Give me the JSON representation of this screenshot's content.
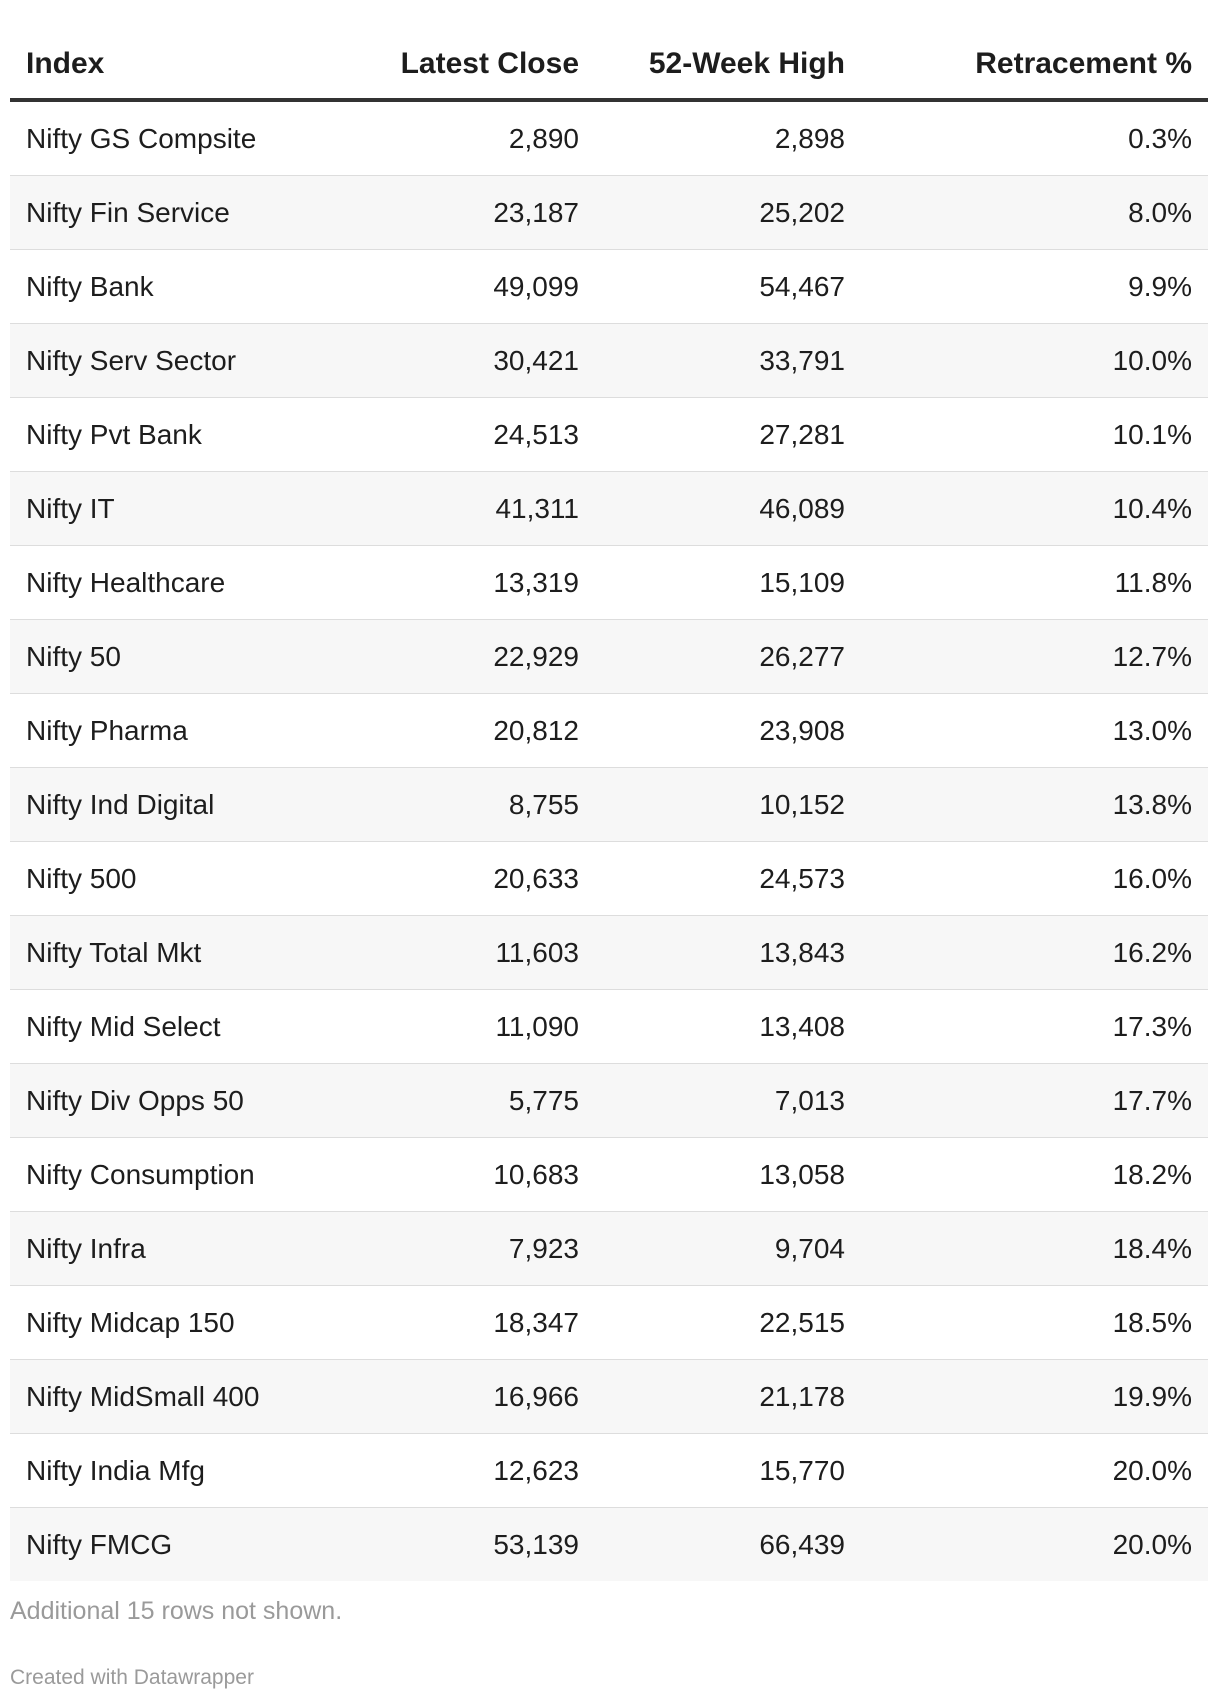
{
  "chart_data": {
    "type": "table",
    "columns": [
      "Index",
      "Latest Close",
      "52-Week High",
      "Retracement %"
    ],
    "rows": [
      [
        "Nifty GS Compsite",
        "2,890",
        "2,898",
        "0.3%"
      ],
      [
        "Nifty Fin Service",
        "23,187",
        "25,202",
        "8.0%"
      ],
      [
        "Nifty Bank",
        "49,099",
        "54,467",
        "9.9%"
      ],
      [
        "Nifty Serv Sector",
        "30,421",
        "33,791",
        "10.0%"
      ],
      [
        "Nifty Pvt Bank",
        "24,513",
        "27,281",
        "10.1%"
      ],
      [
        "Nifty IT",
        "41,311",
        "46,089",
        "10.4%"
      ],
      [
        "Nifty Healthcare",
        "13,319",
        "15,109",
        "11.8%"
      ],
      [
        "Nifty 50",
        "22,929",
        "26,277",
        "12.7%"
      ],
      [
        "Nifty Pharma",
        "20,812",
        "23,908",
        "13.0%"
      ],
      [
        "Nifty Ind Digital",
        "8,755",
        "10,152",
        "13.8%"
      ],
      [
        "Nifty 500",
        "20,633",
        "24,573",
        "16.0%"
      ],
      [
        "Nifty Total Mkt",
        "11,603",
        "13,843",
        "16.2%"
      ],
      [
        "Nifty Mid Select",
        "11,090",
        "13,408",
        "17.3%"
      ],
      [
        "Nifty Div Opps 50",
        "5,775",
        "7,013",
        "17.7%"
      ],
      [
        "Nifty Consumption",
        "10,683",
        "13,058",
        "18.2%"
      ],
      [
        "Nifty Infra",
        "7,923",
        "9,704",
        "18.4%"
      ],
      [
        "Nifty Midcap 150",
        "18,347",
        "22,515",
        "18.5%"
      ],
      [
        "Nifty MidSmall 400",
        "16,966",
        "21,178",
        "19.9%"
      ],
      [
        "Nifty India Mfg",
        "12,623",
        "15,770",
        "20.0%"
      ],
      [
        "Nifty FMCG",
        "53,139",
        "66,439",
        "20.0%"
      ]
    ],
    "notes": "Additional 15 rows not shown.",
    "footer": "Created with Datawrapper"
  },
  "colors": {
    "text": "#1d1d1d",
    "header_rule": "#333333",
    "stripe": "#f7f7f7",
    "row_divider": "#dddddd",
    "muted": "#9a9a9a"
  }
}
